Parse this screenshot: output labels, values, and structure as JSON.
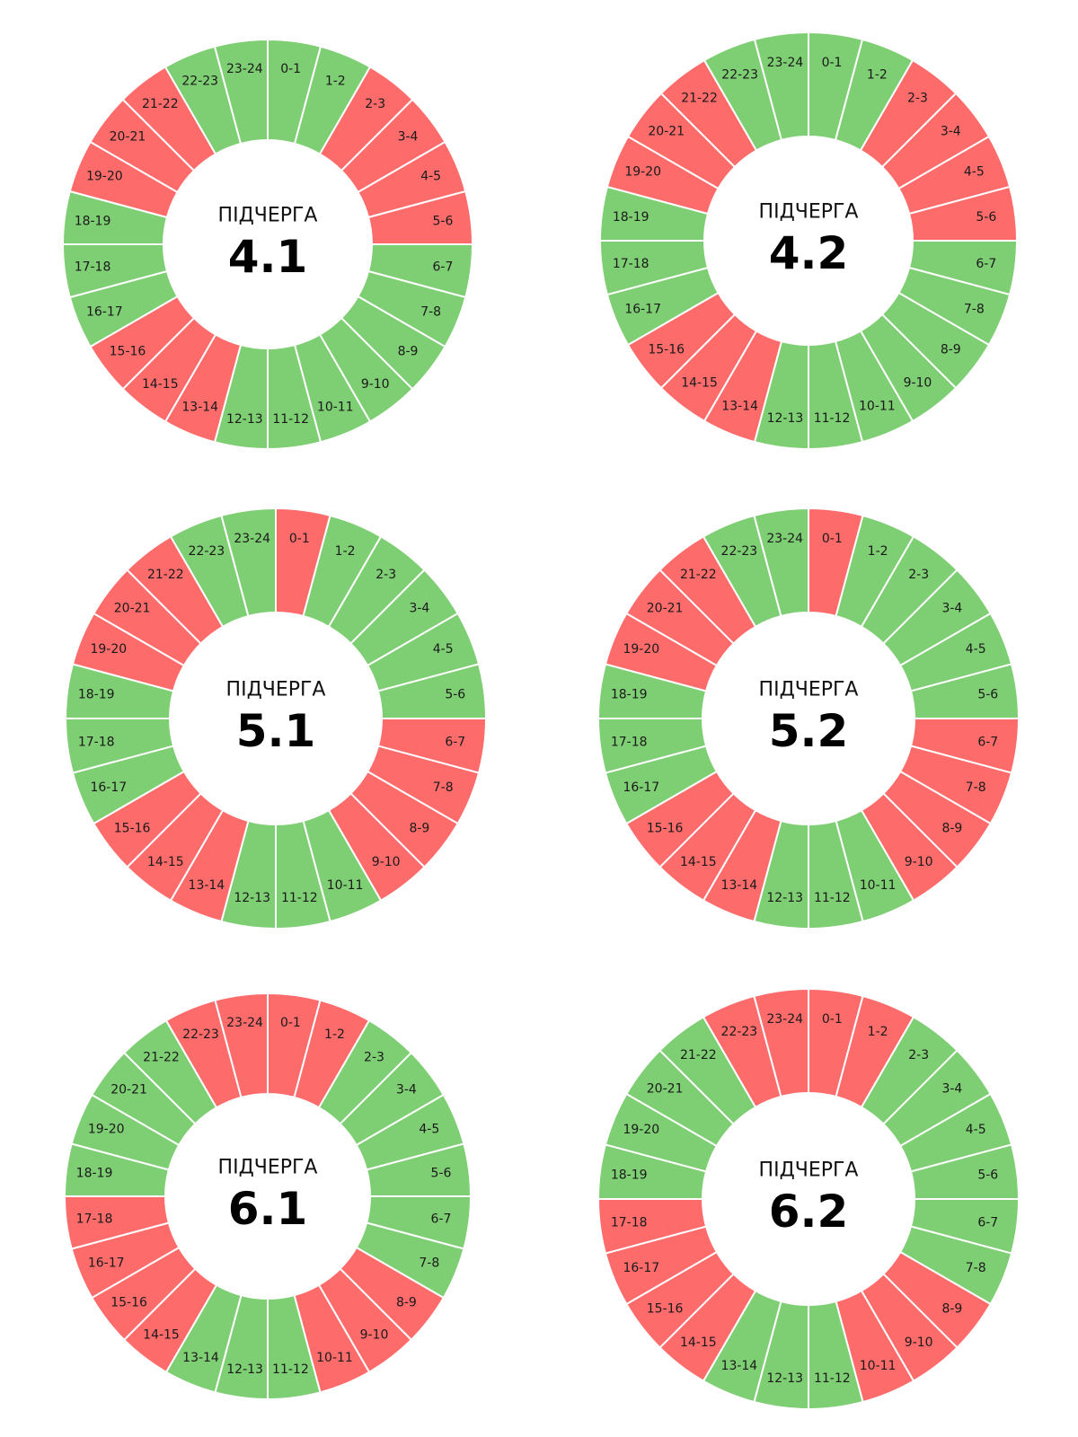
{
  "colors": {
    "on": "#7ece73",
    "off": "#fe6b6b",
    "divider": "#ffffff"
  },
  "slot_labels": [
    "0-1",
    "1-2",
    "2-3",
    "3-4",
    "4-5",
    "5-6",
    "6-7",
    "7-8",
    "8-9",
    "9-10",
    "10-11",
    "11-12",
    "12-13",
    "13-14",
    "14-15",
    "15-16",
    "16-17",
    "17-18",
    "18-19",
    "19-20",
    "20-21",
    "21-22",
    "22-23",
    "23-24"
  ],
  "wheels": [
    {
      "caption": "ПІДЧЕРГА",
      "number": "4.1",
      "states": [
        "on",
        "on",
        "off",
        "off",
        "off",
        "off",
        "on",
        "on",
        "on",
        "on",
        "on",
        "on",
        "on",
        "off",
        "off",
        "off",
        "on",
        "on",
        "on",
        "off",
        "off",
        "off",
        "on",
        "on"
      ]
    },
    {
      "caption": "ПІДЧЕРГА",
      "number": "4.2",
      "states": [
        "on",
        "on",
        "off",
        "off",
        "off",
        "off",
        "on",
        "on",
        "on",
        "on",
        "on",
        "on",
        "on",
        "off",
        "off",
        "off",
        "on",
        "on",
        "on",
        "off",
        "off",
        "off",
        "on",
        "on"
      ]
    },
    {
      "caption": "ПІДЧЕРГА",
      "number": "5.1",
      "states": [
        "off",
        "on",
        "on",
        "on",
        "on",
        "on",
        "off",
        "off",
        "off",
        "off",
        "on",
        "on",
        "on",
        "off",
        "off",
        "off",
        "on",
        "on",
        "on",
        "off",
        "off",
        "off",
        "on",
        "on"
      ]
    },
    {
      "caption": "ПІДЧЕРГА",
      "number": "5.2",
      "states": [
        "off",
        "on",
        "on",
        "on",
        "on",
        "on",
        "off",
        "off",
        "off",
        "off",
        "on",
        "on",
        "on",
        "off",
        "off",
        "off",
        "on",
        "on",
        "on",
        "off",
        "off",
        "off",
        "on",
        "on"
      ]
    },
    {
      "caption": "ПІДЧЕРГА",
      "number": "6.1",
      "states": [
        "off",
        "off",
        "on",
        "on",
        "on",
        "on",
        "on",
        "on",
        "off",
        "off",
        "off",
        "on",
        "on",
        "on",
        "off",
        "off",
        "off",
        "off",
        "on",
        "on",
        "on",
        "on",
        "off",
        "off"
      ]
    },
    {
      "caption": "ПІДЧЕРГА",
      "number": "6.2",
      "states": [
        "off",
        "off",
        "on",
        "on",
        "on",
        "on",
        "on",
        "on",
        "off",
        "off",
        "off",
        "on",
        "on",
        "on",
        "off",
        "off",
        "off",
        "off",
        "on",
        "on",
        "on",
        "on",
        "off",
        "off"
      ]
    }
  ]
}
